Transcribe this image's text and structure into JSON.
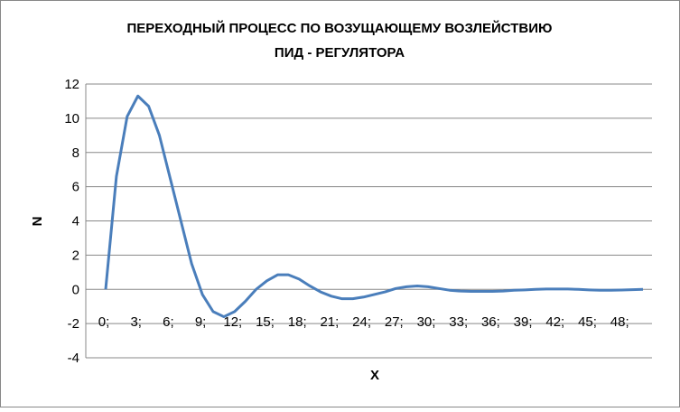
{
  "chart_data": {
    "type": "line",
    "title": [
      "ПЕРЕХОДНЫЙ ПРОЦЕСС ПО ВОЗУЩАЮЩЕМУ ВОЗЛЕЙСТВИЮ",
      "ПИД - РЕГУЛЯТОРА"
    ],
    "x_label": "X",
    "y_label": "N",
    "categories": [
      "0;",
      null,
      null,
      "3;",
      null,
      null,
      "6;",
      null,
      null,
      "9;",
      null,
      null,
      "12;",
      null,
      null,
      "15;",
      null,
      null,
      "18;",
      null,
      null,
      "21;",
      null,
      null,
      "24;",
      null,
      null,
      "27;",
      null,
      null,
      "30;",
      null,
      null,
      "33;",
      null,
      null,
      "36;",
      null,
      null,
      "39;",
      null,
      null,
      "42;",
      null,
      null,
      "45;",
      null,
      null,
      "48;",
      null,
      null
    ],
    "values": [
      0,
      6.6,
      10.1,
      11.3,
      10.7,
      9.0,
      6.5,
      4.0,
      1.5,
      -0.3,
      -1.3,
      -1.6,
      -1.3,
      -0.7,
      0,
      0.5,
      0.85,
      0.85,
      0.6,
      0.2,
      -0.15,
      -0.4,
      -0.55,
      -0.55,
      -0.45,
      -0.3,
      -0.15,
      0.05,
      0.15,
      0.2,
      0.15,
      0.05,
      -0.05,
      -0.1,
      -0.12,
      -0.12,
      -0.12,
      -0.1,
      -0.05,
      -0.03,
      0,
      0.02,
      0.02,
      0.02,
      0,
      -0.03,
      -0.05,
      -0.05,
      -0.04,
      -0.02,
      0
    ],
    "color": "#4a7ebb",
    "ylim": [
      -4,
      12
    ],
    "yticks": [
      -4,
      -2,
      0,
      2,
      4,
      6,
      8,
      10,
      12
    ],
    "grid": true
  }
}
